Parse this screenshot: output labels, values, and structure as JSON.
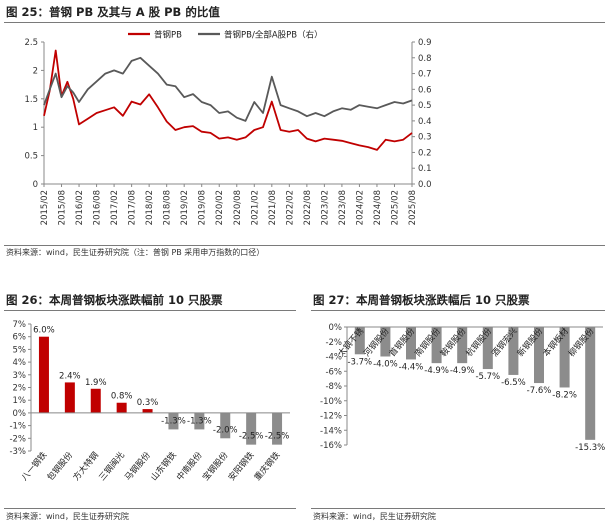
{
  "top": {
    "title": "图 25：普钢 PB 及其与 A 股 PB 的比值",
    "source": "资料来源：wind，民生证券研究院（注：普钢 PB 采用申万指数的口径）"
  },
  "left": {
    "title": "图 26：本周普钢板块涨跌幅前 10 只股票",
    "source": "资料来源：wind，民生证券研究院"
  },
  "right": {
    "title": "图 27：本周普钢板块涨跌幅后 10 只股票",
    "source": "资料来源：wind，民生证券研究院"
  },
  "chart_data": [
    {
      "type": "line",
      "legend_position": "top",
      "x_ticks": [
        "2015/02",
        "2015/08",
        "2016/02",
        "2016/08",
        "2017/02",
        "2017/08",
        "2018/02",
        "2018/08",
        "2019/02",
        "2019/08",
        "2020/02",
        "2020/08",
        "2021/02",
        "2021/08",
        "2022/02",
        "2022/08",
        "2023/02",
        "2023/08",
        "2024/02",
        "2024/08",
        "2025/02",
        "2025/08"
      ],
      "y_left": {
        "min": 0,
        "max": 2.5,
        "ticks": [
          "0",
          "0.5",
          "1",
          "1.5",
          "2",
          "2.5"
        ]
      },
      "y_right": {
        "min": 0,
        "max": 0.9,
        "ticks": [
          "0.0",
          "0.1",
          "0.2",
          "0.3",
          "0.4",
          "0.5",
          "0.6",
          "0.7",
          "0.8",
          "0.9"
        ]
      },
      "colors": {
        "pb": "#c00000",
        "ratio": "#595959"
      },
      "series": [
        {
          "name": "普钢PB",
          "axis": "left",
          "x": [
            "2015/02",
            "2015/04",
            "2015/06",
            "2015/08",
            "2015/10",
            "2015/12",
            "2016/02",
            "2016/05",
            "2016/08",
            "2016/11",
            "2017/02",
            "2017/05",
            "2017/08",
            "2017/11",
            "2018/02",
            "2018/05",
            "2018/08",
            "2018/11",
            "2019/02",
            "2019/05",
            "2019/08",
            "2019/11",
            "2020/02",
            "2020/05",
            "2020/08",
            "2020/11",
            "2021/02",
            "2021/05",
            "2021/08",
            "2021/11",
            "2022/02",
            "2022/05",
            "2022/08",
            "2022/11",
            "2023/02",
            "2023/05",
            "2023/08",
            "2023/11",
            "2024/02",
            "2024/05",
            "2024/08",
            "2024/11",
            "2025/02",
            "2025/05",
            "2025/08"
          ],
          "values": [
            1.2,
            1.65,
            2.35,
            1.55,
            1.8,
            1.5,
            1.05,
            1.15,
            1.25,
            1.3,
            1.35,
            1.2,
            1.45,
            1.4,
            1.58,
            1.35,
            1.1,
            0.95,
            1.0,
            1.02,
            0.92,
            0.9,
            0.8,
            0.82,
            0.78,
            0.82,
            0.95,
            1.0,
            1.45,
            0.95,
            0.92,
            0.95,
            0.8,
            0.75,
            0.8,
            0.78,
            0.76,
            0.72,
            0.68,
            0.65,
            0.6,
            0.78,
            0.75,
            0.78,
            0.9
          ]
        },
        {
          "name": "普钢PB/全部A股PB（右）",
          "axis": "right",
          "x": [
            "2015/02",
            "2015/04",
            "2015/06",
            "2015/08",
            "2015/10",
            "2015/12",
            "2016/02",
            "2016/05",
            "2016/08",
            "2016/11",
            "2017/02",
            "2017/05",
            "2017/08",
            "2017/11",
            "2018/02",
            "2018/05",
            "2018/08",
            "2018/11",
            "2019/02",
            "2019/05",
            "2019/08",
            "2019/11",
            "2020/02",
            "2020/05",
            "2020/08",
            "2020/11",
            "2021/02",
            "2021/05",
            "2021/08",
            "2021/11",
            "2022/02",
            "2022/05",
            "2022/08",
            "2022/11",
            "2023/02",
            "2023/05",
            "2023/08",
            "2023/11",
            "2024/02",
            "2024/05",
            "2024/08",
            "2024/11",
            "2025/02",
            "2025/05",
            "2025/08"
          ],
          "values": [
            0.5,
            0.6,
            0.7,
            0.55,
            0.62,
            0.58,
            0.52,
            0.6,
            0.65,
            0.7,
            0.72,
            0.7,
            0.78,
            0.8,
            0.75,
            0.7,
            0.63,
            0.62,
            0.55,
            0.57,
            0.52,
            0.5,
            0.45,
            0.46,
            0.42,
            0.4,
            0.52,
            0.45,
            0.68,
            0.5,
            0.48,
            0.46,
            0.43,
            0.45,
            0.43,
            0.46,
            0.48,
            0.47,
            0.5,
            0.49,
            0.48,
            0.5,
            0.52,
            0.51,
            0.53
          ]
        }
      ]
    },
    {
      "type": "bar",
      "color": "#c00000",
      "color_negative": "#8c8c8c",
      "categories": [
        "八一钢铁",
        "包钢股份",
        "方大特钢",
        "三钢闽光",
        "马钢股份",
        "山东钢铁",
        "中南股份",
        "宝钢股份",
        "安阳钢铁",
        "重庆钢铁"
      ],
      "values": [
        6.0,
        2.4,
        1.9,
        0.8,
        0.3,
        -1.3,
        -1.3,
        -2.0,
        -2.5,
        -2.5
      ],
      "value_labels": [
        "6.0%",
        "2.4%",
        "1.9%",
        "0.8%",
        "0.3%",
        "-1.3%",
        "-1.3%",
        "-2.0%",
        "-2.5%",
        "-2.5%"
      ],
      "ylim": [
        -3,
        7
      ],
      "y_ticks": [
        "7%",
        "6%",
        "5%",
        "4%",
        "3%",
        "2%",
        "1%",
        "0%",
        "-1%",
        "-2%",
        "-3%"
      ]
    },
    {
      "type": "bar",
      "color": "#8c8c8c",
      "categories": [
        "太钢不锈",
        "河钢股份",
        "首钢股份",
        "南钢股份",
        "鞍钢股份",
        "杭钢股份",
        "酒钢宏兴",
        "新钢股份",
        "本钢板材",
        "柳钢股份"
      ],
      "values": [
        -3.7,
        -4.0,
        -4.4,
        -4.9,
        -4.9,
        -5.7,
        -6.5,
        -7.6,
        -8.2,
        -15.3
      ],
      "value_labels": [
        "-3.7%",
        "-4.0%",
        "-4.4%",
        "-4.9%",
        "-4.9%",
        "-5.7%",
        "-6.5%",
        "-7.6%",
        "-8.2%",
        "-15.3%"
      ],
      "ylim": [
        -16,
        0
      ],
      "y_ticks": [
        "0%",
        "-2%",
        "-4%",
        "-6%",
        "-8%",
        "-10%",
        "-12%",
        "-14%",
        "-16%"
      ]
    }
  ]
}
